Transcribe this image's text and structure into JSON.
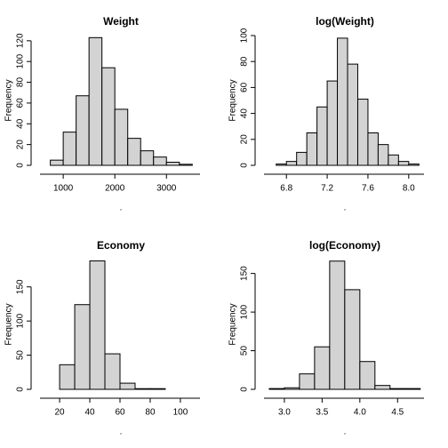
{
  "chart_data": [
    {
      "type": "histogram",
      "title": "Weight",
      "xlabel": ".",
      "ylabel": "Frequency",
      "bins": [
        750,
        1000,
        1250,
        1500,
        1750,
        2000,
        2250,
        2500,
        2750,
        3000,
        3250,
        3500
      ],
      "values": [
        5,
        32,
        67,
        123,
        94,
        54,
        26,
        14,
        8,
        3,
        1
      ],
      "color": "#d3d3d3",
      "xlim": [
        550,
        3650
      ],
      "xticks": [
        1000,
        2000,
        3000
      ],
      "ylim": [
        0,
        125
      ],
      "yticks": [
        0,
        20,
        40,
        60,
        80,
        100,
        120
      ]
    },
    {
      "type": "histogram",
      "title": "log(Weight)",
      "xlabel": ".",
      "ylabel": "Frequency",
      "bins": [
        6.7,
        6.8,
        6.9,
        7.0,
        7.1,
        7.2,
        7.3,
        7.4,
        7.5,
        7.6,
        7.7,
        7.8,
        7.9,
        8.0,
        8.1
      ],
      "values": [
        1,
        3,
        10,
        25,
        45,
        65,
        98,
        78,
        51,
        25,
        16,
        8,
        3,
        1
      ],
      "color": "#d3d3d3",
      "xlim": [
        6.58,
        8.15
      ],
      "xticks": [
        6.8,
        7.2,
        7.6,
        {
          "value": 8,
          "label": "8.0"
        }
      ],
      "ylim": [
        0,
        100
      ],
      "yticks": [
        0,
        20,
        40,
        60,
        80,
        100
      ]
    },
    {
      "type": "histogram",
      "title": "Economy",
      "xlabel": ".",
      "ylabel": "Frequency",
      "bins": [
        20,
        30,
        40,
        50,
        60,
        70,
        80,
        90
      ],
      "values": [
        36,
        124,
        188,
        52,
        9,
        1,
        1
      ],
      "color": "#d3d3d3",
      "xlim": [
        7,
        113
      ],
      "xticks": [
        20,
        40,
        60,
        80,
        100
      ],
      "ylim": [
        0,
        190
      ],
      "yticks": [
        0,
        50,
        100,
        150
      ]
    },
    {
      "type": "histogram",
      "title": "log(Economy)",
      "xlabel": ".",
      "ylabel": "Frequency",
      "bins": [
        2.8,
        3.0,
        3.2,
        3.4,
        3.6,
        3.8,
        4.0,
        4.2,
        4.4,
        4.6,
        4.8
      ],
      "values": [
        1,
        2,
        20,
        55,
        166,
        129,
        36,
        5,
        1,
        1
      ],
      "color": "#d3d3d3",
      "xlim": [
        2.73,
        4.85
      ],
      "xticks": [
        {
          "value": 3,
          "label": "3.0"
        },
        3.5,
        {
          "value": 4,
          "label": "4.0"
        },
        4.5
      ],
      "ylim": [
        0,
        168
      ],
      "yticks": [
        0,
        50,
        100,
        150
      ]
    }
  ]
}
